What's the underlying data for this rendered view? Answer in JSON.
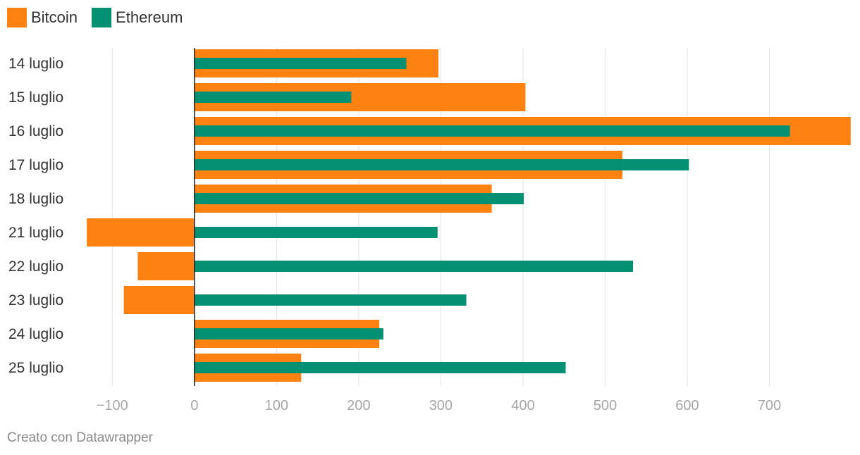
{
  "legend": [
    {
      "label": "Bitcoin",
      "color": "#fe8212"
    },
    {
      "label": "Ethereum",
      "color": "#049073"
    }
  ],
  "footer": "Creato con Datawrapper",
  "chart_data": {
    "type": "bar",
    "orientation": "horizontal",
    "title": "",
    "xlabel": "",
    "ylabel": "",
    "categories": [
      "14 luglio",
      "15 luglio",
      "16 luglio",
      "17 luglio",
      "18 luglio",
      "21 luglio",
      "22 luglio",
      "23 luglio",
      "24 luglio",
      "25 luglio"
    ],
    "series": [
      {
        "name": "Bitcoin",
        "color": "#fe8212",
        "values": [
          297,
          403,
          799,
          521,
          362,
          -131,
          -69,
          -86,
          225,
          130
        ]
      },
      {
        "name": "Ethereum",
        "color": "#049073",
        "values": [
          258,
          191,
          725,
          602,
          401,
          296,
          534,
          331,
          230,
          452
        ]
      }
    ],
    "xlim": [
      -132,
      800
    ],
    "xticks": [
      -100,
      0,
      100,
      200,
      300,
      400,
      500,
      600,
      700
    ],
    "xtick_labels": [
      "−100",
      "0",
      "100",
      "200",
      "300",
      "400",
      "500",
      "600",
      "700"
    ],
    "grid": true,
    "legend_position": "top-left"
  }
}
